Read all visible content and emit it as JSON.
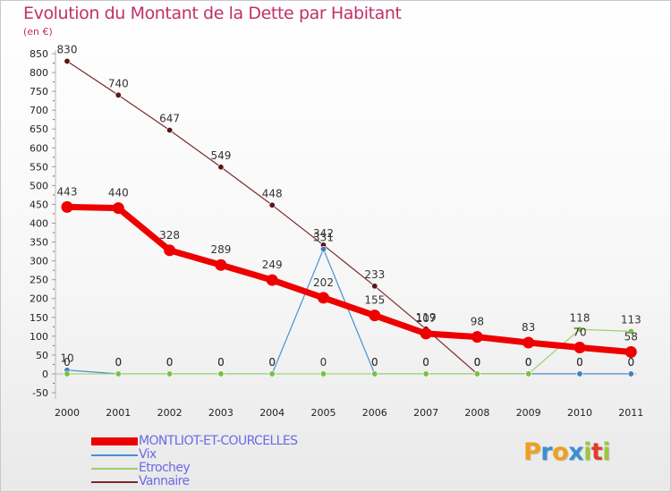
{
  "chart_data": {
    "type": "line",
    "title": "Evolution du Montant de la Dette par Habitant",
    "unit": "(en €)",
    "xlabel": "",
    "ylabel": "",
    "ylim": [
      -50,
      850
    ],
    "ytick_step": 50,
    "grid": false,
    "categories": [
      "2000",
      "2001",
      "2002",
      "2003",
      "2004",
      "2005",
      "2006",
      "2007",
      "2008",
      "2009",
      "2010",
      "2011"
    ],
    "series": [
      {
        "name": "MONTLIOT-ET-COURCELLES",
        "color": "#ee0000",
        "marker": "#ee0000",
        "width": 7,
        "values": [
          443,
          440,
          328,
          289,
          249,
          202,
          155,
          107,
          98,
          83,
          70,
          58
        ],
        "labels": [
          "443",
          "440",
          "328",
          "289",
          "249",
          "202",
          "155",
          "107",
          "98",
          "83",
          "70",
          "58"
        ]
      },
      {
        "name": "Vix",
        "color": "#4a8fce",
        "marker": "#3f80c0",
        "width": 1.2,
        "values": [
          10,
          0,
          0,
          0,
          0,
          331,
          0,
          0,
          0,
          0,
          0,
          0
        ],
        "labels": [
          "10",
          "0",
          "0",
          "0",
          "0",
          "331",
          "0",
          "0",
          "0",
          "0",
          "0",
          "0"
        ]
      },
      {
        "name": "Etrochey",
        "color": "#9ad26a",
        "marker": "#77c040",
        "width": 1.2,
        "values": [
          0,
          0,
          0,
          0,
          0,
          0,
          0,
          0,
          0,
          0,
          118,
          113
        ],
        "labels": [
          "0",
          "0",
          "0",
          "0",
          "0",
          "0",
          "0",
          "0",
          "0",
          "0",
          "118",
          "113"
        ]
      },
      {
        "name": "Vannaire",
        "color": "#7a2a2a",
        "marker": "#5a1515",
        "width": 1.2,
        "values": [
          830,
          740,
          647,
          549,
          448,
          342,
          233,
          119,
          0,
          0,
          0,
          0
        ],
        "labels": [
          "830",
          "740",
          "647",
          "549",
          "448",
          "342",
          "233",
          "119",
          "0",
          "0",
          "0",
          "0"
        ]
      }
    ]
  },
  "legend": {
    "items": [
      {
        "label": "MONTLIOT-ET-COURCELLES",
        "color": "#ee0000"
      },
      {
        "label": "Vix",
        "color": "#4a8fce"
      },
      {
        "label": "Etrochey",
        "color": "#9ad26a"
      },
      {
        "label": "Vannaire",
        "color": "#7a2a2a"
      }
    ]
  },
  "logo": {
    "letters": [
      "P",
      "r",
      "o",
      "x",
      "i",
      "t",
      "i"
    ],
    "colors": [
      "#f0a020",
      "#3a8fd0",
      "#f0a020",
      "#3a8fd0",
      "#9ac83a",
      "#e23c2a",
      "#9ac83a"
    ]
  }
}
